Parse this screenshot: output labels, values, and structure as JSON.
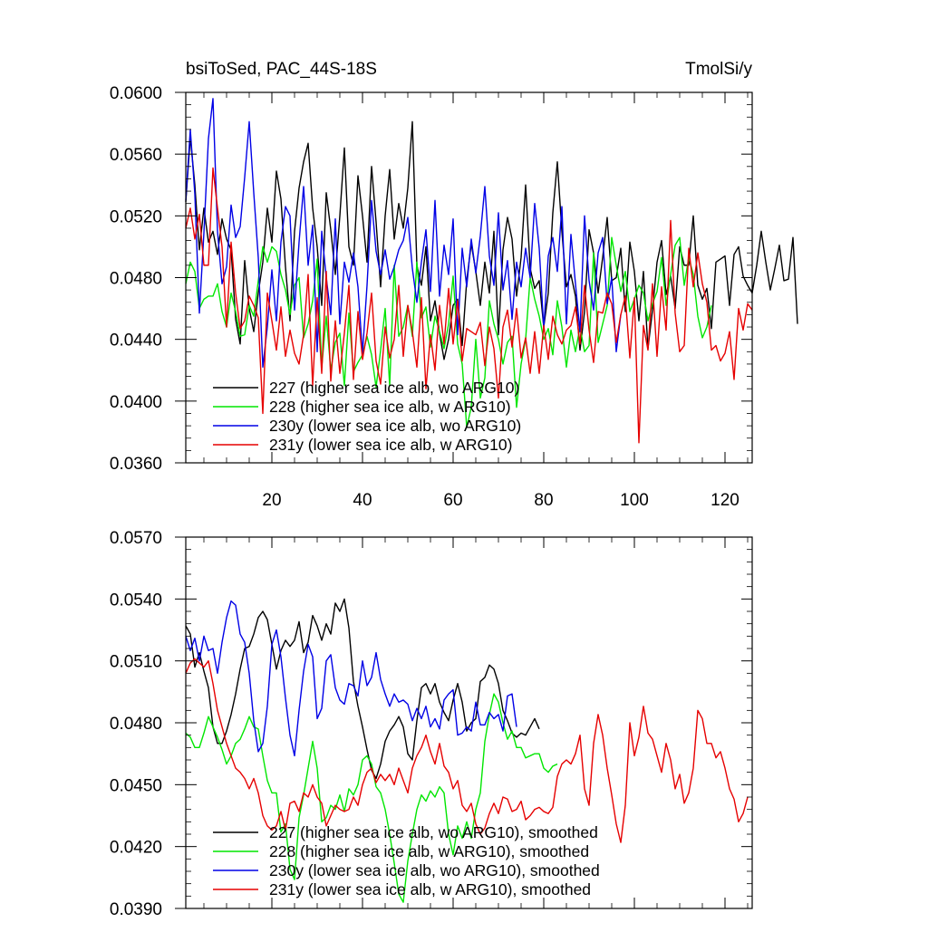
{
  "header": {
    "left_title": "bsiToSed, PAC_44S-18S",
    "right_title": "TmolSi/y"
  },
  "chart_data": [
    {
      "type": "line",
      "title": "bsiToSed, PAC_44S-18S",
      "units": "TmolSi/y",
      "xlim": [
        1,
        126
      ],
      "ylim": [
        0.036,
        0.06
      ],
      "x_ticks": [
        20,
        40,
        60,
        80,
        100,
        120
      ],
      "y_ticks": [
        0.036,
        0.04,
        0.044,
        0.048,
        0.052,
        0.056,
        0.06
      ],
      "x_ticks_labeled": true,
      "y_tick_labels": [
        "0.0360",
        "0.0400",
        "0.0440",
        "0.0480",
        "0.0520",
        "0.0560",
        "0.0600"
      ],
      "x_tick_labels": [
        "20",
        "40",
        "60",
        "80",
        "100",
        "120"
      ],
      "legend_position": "bottom-left",
      "series": [
        {
          "name": "227 (higher sea ice alb, wo ARG10)",
          "color": "#000000",
          "x_start": 1,
          "values": [
            0.0529,
            0.0571,
            0.054,
            0.0498,
            0.0525,
            0.0503,
            0.051,
            0.0495,
            0.0518,
            0.0505,
            0.0498,
            0.0453,
            0.0437,
            0.0491,
            0.046,
            0.0445,
            0.047,
            0.049,
            0.0525,
            0.0503,
            0.0549,
            0.0531,
            0.0487,
            0.0452,
            0.051,
            0.0538,
            0.0555,
            0.0567,
            0.0525,
            0.05,
            0.0462,
            0.0535,
            0.0511,
            0.0482,
            0.052,
            0.0564,
            0.05,
            0.0488,
            0.0546,
            0.052,
            0.049,
            0.0552,
            0.0516,
            0.0474,
            0.052,
            0.055,
            0.0505,
            0.0528,
            0.0512,
            0.0538,
            0.0581,
            0.0488,
            0.0475,
            0.05,
            0.0452,
            0.0465,
            0.0444,
            0.0427,
            0.044,
            0.0462,
            0.0466,
            0.0436,
            0.0478,
            0.0502,
            0.0484,
            0.0462,
            0.049,
            0.047,
            0.051,
            0.0443,
            0.0498,
            0.0519,
            0.0505,
            0.0468,
            0.0493,
            0.054,
            0.0486,
            0.0473,
            0.0478,
            0.0448,
            0.047,
            0.0522,
            0.0555,
            0.051,
            0.0474,
            0.0482,
            0.0468,
            0.0433,
            0.0458,
            0.0511,
            0.0496,
            0.047,
            0.0493,
            0.0519,
            0.0478,
            0.048,
            0.0499,
            0.0458,
            0.0503,
            0.0484,
            0.0452,
            0.0484,
            0.0434,
            0.0459,
            0.049,
            0.0504,
            0.0469,
            0.0481,
            0.046,
            0.05,
            0.0488,
            0.0488,
            0.052,
            0.0475,
            0.0466,
            0.0473,
            0.0447,
            0.049,
            0.0492,
            0.0494,
            0.0462,
            0.0495,
            0.05,
            0.0481,
            0.0475,
            0.047,
            0.0488,
            0.051,
            0.049,
            0.0472,
            0.0486,
            0.0501,
            0.0478,
            0.0479,
            0.0506,
            0.045
          ]
        },
        {
          "name": "228 (higher sea ice alb, w ARG10)",
          "color": "#00e600",
          "x_start": 1,
          "values": [
            0.0476,
            0.049,
            0.0484,
            0.046,
            0.0466,
            0.0468,
            0.0468,
            0.0476,
            0.0458,
            0.0448,
            0.047,
            0.0458,
            0.0442,
            0.0443,
            0.0462,
            0.0455,
            0.0478,
            0.05,
            0.049,
            0.05,
            0.0497,
            0.0482,
            0.0472,
            0.0456,
            0.0475,
            0.048,
            0.0441,
            0.045,
            0.0465,
            0.0492,
            0.0422,
            0.0455,
            0.042,
            0.0438,
            0.0444,
            0.041,
            0.0457,
            0.0419,
            0.0425,
            0.043,
            0.0442,
            0.043,
            0.0409,
            0.0433,
            0.046,
            0.041,
            0.0488,
            0.0442,
            0.0448,
            0.0462,
            0.0442,
            0.049,
            0.0454,
            0.0461,
            0.0435,
            0.0455,
            0.0445,
            0.0434,
            0.045,
            0.0481,
            0.0437,
            0.0424,
            0.0383,
            0.0396,
            0.044,
            0.0402,
            0.0415,
            0.0465,
            0.045,
            0.044,
            0.0424,
            0.0438,
            0.0442,
            0.0396,
            0.0424,
            0.044,
            0.048,
            0.0466,
            0.0455,
            0.044,
            0.0447,
            0.043,
            0.0465,
            0.0448,
            0.0422,
            0.0446,
            0.0432,
            0.0448,
            0.0432,
            0.0436,
            0.0496,
            0.0438,
            0.045,
            0.0462,
            0.0506,
            0.0488,
            0.0471,
            0.0484,
            0.0458,
            0.0466,
            0.0475,
            0.047,
            0.0452,
            0.0463,
            0.0471,
            0.0493,
            0.0462,
            0.0482,
            0.0501,
            0.0506,
            0.0475,
            0.0493,
            0.0482,
            0.0455,
            0.0441,
            0.0448,
            0.0462
          ]
        },
        {
          "name": "230y (lower sea ice alb, wo ARG10)",
          "color": "#0000e6",
          "x_start": 1,
          "values": [
            0.053,
            0.0576,
            0.0534,
            0.0457,
            0.0509,
            0.057,
            0.0596,
            0.051,
            0.0476,
            0.0487,
            0.0527,
            0.0506,
            0.0513,
            0.0545,
            0.0581,
            0.0535,
            0.0493,
            0.0422,
            0.0448,
            0.0485,
            0.0452,
            0.0503,
            0.0526,
            0.052,
            0.0459,
            0.0503,
            0.0539,
            0.0488,
            0.0514,
            0.0432,
            0.051,
            0.048,
            0.0456,
            0.0518,
            0.045,
            0.049,
            0.0477,
            0.0496,
            0.0474,
            0.0431,
            0.0475,
            0.053,
            0.0497,
            0.0482,
            0.0498,
            0.0479,
            0.0487,
            0.0498,
            0.0504,
            0.0519,
            0.0486,
            0.0464,
            0.049,
            0.0511,
            0.0471,
            0.053,
            0.0468,
            0.0501,
            0.0482,
            0.0518,
            0.0443,
            0.0499,
            0.0474,
            0.0505,
            0.0483,
            0.0507,
            0.0539,
            0.0494,
            0.0475,
            0.0522,
            0.0472,
            0.0491,
            0.0453,
            0.049,
            0.0474,
            0.0499,
            0.048,
            0.0528,
            0.0499,
            0.0447,
            0.0494,
            0.0506,
            0.0484,
            0.0526,
            0.045,
            0.0508,
            0.0476,
            0.0445,
            0.052,
            0.0478,
            0.0459,
            0.0496,
            0.0506,
            0.0463,
            0.048,
            0.0432,
            0.0456
          ]
        },
        {
          "name": "231y (lower sea ice alb, w ARG10)",
          "color": "#e60000",
          "x_start": 1,
          "values": [
            0.0512,
            0.0525,
            0.0505,
            0.0521,
            0.0488,
            0.0488,
            0.0551,
            0.0525,
            0.05,
            0.0448,
            0.0503,
            0.047,
            0.0447,
            0.0452,
            0.0468,
            0.0462,
            0.0454,
            0.0392,
            0.047,
            0.0452,
            0.0433,
            0.0461,
            0.0429,
            0.0446,
            0.0431,
            0.0424,
            0.0443,
            0.0482,
            0.041,
            0.0467,
            0.0418,
            0.0484,
            0.0413,
            0.0452,
            0.0418,
            0.0444,
            0.0475,
            0.0414,
            0.0458,
            0.0427,
            0.0444,
            0.047,
            0.0426,
            0.0411,
            0.0448,
            0.0428,
            0.044,
            0.0475,
            0.0429,
            0.0462,
            0.0445,
            0.0422,
            0.0467,
            0.0408,
            0.0443,
            0.042,
            0.0462,
            0.0437,
            0.0473,
            0.0437,
            0.0465,
            0.0426,
            0.0447,
            0.0445,
            0.0443,
            0.0451,
            0.0423,
            0.0448,
            0.0434,
            0.0402,
            0.0448,
            0.0459,
            0.0435,
            0.046,
            0.0428,
            0.0441,
            0.0418,
            0.0445,
            0.0418,
            0.0449,
            0.0427,
            0.0455,
            0.0443,
            0.0437,
            0.0446,
            0.0449,
            0.0461,
            0.0437,
            0.0475,
            0.0446,
            0.0425,
            0.0458,
            0.0457,
            0.047,
            0.0463,
            0.0438,
            0.0456,
            0.0468,
            0.0428,
            0.0467,
            0.0373,
            0.0449,
            0.0433,
            0.0476,
            0.0429,
            0.0474,
            0.0446,
            0.0517,
            0.0457,
            0.0432,
            0.0436,
            0.0499,
            0.0474,
            0.0496,
            0.0476,
            0.0464,
            0.0433,
            0.0436,
            0.0426,
            0.0431,
            0.0445,
            0.0414,
            0.046,
            0.0446,
            0.0463,
            0.0459
          ]
        }
      ]
    },
    {
      "type": "line",
      "xlim": [
        1,
        126
      ],
      "ylim": [
        0.039,
        0.057
      ],
      "x_ticks": [
        20,
        40,
        60,
        80,
        100,
        120
      ],
      "x_ticks_labeled": false,
      "y_ticks": [
        0.039,
        0.042,
        0.045,
        0.048,
        0.051,
        0.054,
        0.057
      ],
      "y_tick_labels": [
        "0.0390",
        "0.0420",
        "0.0450",
        "0.0480",
        "0.0510",
        "0.0540",
        "0.0570"
      ],
      "legend_position": "bottom-left",
      "series": [
        {
          "name": "227 (higher sea ice alb, wo ARG10), smoothed",
          "color": "#000000",
          "x_start": 1,
          "values": [
            0.0527,
            0.0523,
            0.0507,
            0.0514,
            0.0505,
            0.0497,
            0.0478,
            0.047,
            0.047,
            0.0476,
            0.0484,
            0.0494,
            0.0506,
            0.0516,
            0.0517,
            0.0523,
            0.0531,
            0.0534,
            0.053,
            0.0518,
            0.0506,
            0.0515,
            0.052,
            0.0517,
            0.052,
            0.0529,
            0.0514,
            0.0519,
            0.0532,
            0.0527,
            0.052,
            0.0528,
            0.0523,
            0.0538,
            0.0534,
            0.054,
            0.0526,
            0.05,
            0.0488,
            0.0478,
            0.0467,
            0.0457,
            0.0453,
            0.046,
            0.0471,
            0.0476,
            0.0479,
            0.0483,
            0.0478,
            0.0465,
            0.0462,
            0.0481,
            0.0497,
            0.0499,
            0.0494,
            0.0499,
            0.049,
            0.0485,
            0.0481,
            0.0491,
            0.0499,
            0.049,
            0.0476,
            0.048,
            0.0482,
            0.05,
            0.0502,
            0.0508,
            0.0506,
            0.0499,
            0.0486,
            0.0481,
            0.0475,
            0.0473,
            0.0475,
            0.0474,
            0.0478,
            0.0482,
            0.0477
          ]
        },
        {
          "name": "228 (higher sea ice alb, w ARG10), smoothed",
          "color": "#00e600",
          "x_start": 1,
          "values": [
            0.0475,
            0.0473,
            0.0468,
            0.0468,
            0.0475,
            0.0483,
            0.0478,
            0.0473,
            0.0467,
            0.046,
            0.0464,
            0.047,
            0.0472,
            0.0477,
            0.0483,
            0.0478,
            0.0477,
            0.0464,
            0.0452,
            0.0446,
            0.0446,
            0.0427,
            0.0431,
            0.0409,
            0.0404,
            0.0434,
            0.0445,
            0.0458,
            0.0471,
            0.0458,
            0.0432,
            0.0434,
            0.044,
            0.0438,
            0.0445,
            0.0437,
            0.0448,
            0.0445,
            0.045,
            0.0462,
            0.0464,
            0.046,
            0.0449,
            0.0446,
            0.0438,
            0.0426,
            0.0412,
            0.0397,
            0.0393,
            0.0413,
            0.0426,
            0.0438,
            0.0445,
            0.0442,
            0.0447,
            0.0444,
            0.0449,
            0.0446,
            0.0426,
            0.0416,
            0.043,
            0.0424,
            0.0432,
            0.0424,
            0.0438,
            0.0446,
            0.0471,
            0.0484,
            0.0494,
            0.049,
            0.048,
            0.0472,
            0.0476,
            0.0468,
            0.0468,
            0.0463,
            0.0464,
            0.0465,
            0.0465,
            0.0458,
            0.0456,
            0.0459,
            0.046
          ]
        },
        {
          "name": "230y (lower sea ice alb, wo ARG10), smoothed",
          "color": "#0000e6",
          "x_start": 1,
          "values": [
            0.0522,
            0.0515,
            0.0521,
            0.051,
            0.0522,
            0.0515,
            0.0516,
            0.0504,
            0.0519,
            0.0531,
            0.0539,
            0.0537,
            0.0523,
            0.0519,
            0.0504,
            0.0481,
            0.0466,
            0.047,
            0.0488,
            0.0518,
            0.0525,
            0.0512,
            0.0492,
            0.0474,
            0.0464,
            0.0486,
            0.0505,
            0.0518,
            0.0512,
            0.0482,
            0.0487,
            0.051,
            0.0513,
            0.0497,
            0.0491,
            0.0489,
            0.0499,
            0.0498,
            0.0493,
            0.051,
            0.0498,
            0.0502,
            0.0514,
            0.0501,
            0.0494,
            0.0488,
            0.0494,
            0.049,
            0.0491,
            0.0489,
            0.0481,
            0.0487,
            0.0482,
            0.0488,
            0.0478,
            0.0482,
            0.0477,
            0.0491,
            0.0494,
            0.0496,
            0.0474,
            0.0475,
            0.0478,
            0.0476,
            0.049,
            0.0479,
            0.0479,
            0.0485,
            0.0482,
            0.0484,
            0.0476,
            0.0493,
            0.0494,
            0.0478
          ]
        },
        {
          "name": "231y (lower sea ice alb, w ARG10), smoothed",
          "color": "#e60000",
          "x_start": 1,
          "values": [
            0.0504,
            0.0509,
            0.0511,
            0.0509,
            0.0507,
            0.051,
            0.0499,
            0.0486,
            0.0478,
            0.047,
            0.0464,
            0.0458,
            0.0456,
            0.0453,
            0.0448,
            0.0453,
            0.0446,
            0.0435,
            0.043,
            0.0428,
            0.043,
            0.0437,
            0.0428,
            0.0441,
            0.0442,
            0.0437,
            0.0446,
            0.0444,
            0.045,
            0.0444,
            0.0441,
            0.043,
            0.0435,
            0.044,
            0.0438,
            0.0437,
            0.0438,
            0.0444,
            0.044,
            0.045,
            0.0456,
            0.0458,
            0.0451,
            0.0455,
            0.0452,
            0.0455,
            0.045,
            0.0458,
            0.0452,
            0.0446,
            0.0458,
            0.0464,
            0.0468,
            0.0474,
            0.0466,
            0.046,
            0.047,
            0.0459,
            0.0456,
            0.0448,
            0.0452,
            0.044,
            0.0437,
            0.0441,
            0.0431,
            0.0426,
            0.0429,
            0.0436,
            0.0441,
            0.0436,
            0.0444,
            0.0443,
            0.0437,
            0.0438,
            0.0442,
            0.0433,
            0.0435,
            0.0438,
            0.0439,
            0.0437,
            0.0436,
            0.0439,
            0.0454,
            0.046,
            0.0462,
            0.046,
            0.0465,
            0.0474,
            0.0448,
            0.044,
            0.047,
            0.0484,
            0.0474,
            0.0458,
            0.0445,
            0.0431,
            0.0422,
            0.044,
            0.048,
            0.0464,
            0.0473,
            0.0488,
            0.0475,
            0.0472,
            0.0464,
            0.0456,
            0.047,
            0.0462,
            0.0448,
            0.0455,
            0.0441,
            0.0446,
            0.0458,
            0.0486,
            0.0482,
            0.047,
            0.047,
            0.0463,
            0.0466,
            0.0458,
            0.0448,
            0.0443,
            0.0432,
            0.0436,
            0.0444
          ]
        }
      ]
    }
  ]
}
